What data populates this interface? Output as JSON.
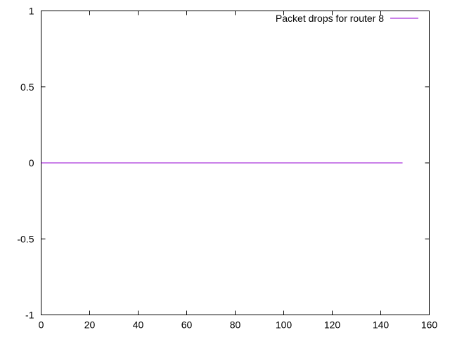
{
  "chart_data": {
    "type": "line",
    "title": "",
    "xlabel": "",
    "ylabel": "",
    "xlim": [
      0,
      160
    ],
    "ylim": [
      -1,
      1
    ],
    "xticks": [
      0,
      20,
      40,
      60,
      80,
      100,
      120,
      140,
      160
    ],
    "xtick_labels": [
      "0",
      "20",
      "40",
      "60",
      "80",
      "100",
      "120",
      "140",
      "160"
    ],
    "yticks": [
      -1,
      -0.5,
      0,
      0.5,
      1
    ],
    "ytick_labels": [
      "-1",
      "-0.5",
      "0",
      "0.5",
      "1"
    ],
    "grid": false,
    "legend_position": "top-right",
    "series": [
      {
        "name": "Packet drops for router 8",
        "color": "#9400d3",
        "x": [
          0,
          149
        ],
        "y": [
          0,
          0
        ]
      }
    ]
  }
}
